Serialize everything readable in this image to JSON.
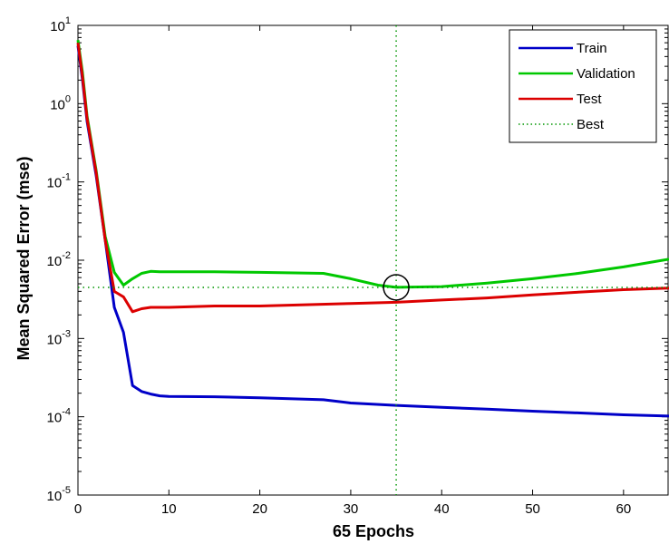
{
  "chart_data": {
    "type": "line",
    "title": "",
    "xlabel": "65 Epochs",
    "ylabel": "Mean Squared Error  (mse)",
    "xlim": [
      0,
      65
    ],
    "ylim": [
      1e-05,
      10
    ],
    "yscale": "log",
    "grid": false,
    "legend_position": "top-right",
    "x_ticks": [
      0,
      10,
      20,
      30,
      40,
      50,
      60
    ],
    "x_tick_labels": [
      "0",
      "10",
      "20",
      "30",
      "40",
      "50",
      "60"
    ],
    "y_ticks": [
      {
        "value": 10,
        "base": "10",
        "exp": "1"
      },
      {
        "value": 1,
        "base": "10",
        "exp": "0"
      },
      {
        "value": 0.1,
        "base": "10",
        "exp": "-1"
      },
      {
        "value": 0.01,
        "base": "10",
        "exp": "-2"
      },
      {
        "value": 0.001,
        "base": "10",
        "exp": "-3"
      },
      {
        "value": 0.0001,
        "base": "10",
        "exp": "-4"
      },
      {
        "value": 1e-05,
        "base": "10",
        "exp": "-5"
      }
    ],
    "series": [
      {
        "name": "Train",
        "color": "#0000c8",
        "points": [
          [
            0,
            5.5
          ],
          [
            0.5,
            2.0
          ],
          [
            1,
            0.6
          ],
          [
            2,
            0.12
          ],
          [
            3,
            0.018
          ],
          [
            4,
            0.0025
          ],
          [
            5,
            0.0012
          ],
          [
            6,
            0.00025
          ],
          [
            7,
            0.00021
          ],
          [
            8,
            0.000195
          ],
          [
            9,
            0.000185
          ],
          [
            10,
            0.000182
          ],
          [
            15,
            0.00018
          ],
          [
            20,
            0.000175
          ],
          [
            27,
            0.000165
          ],
          [
            30,
            0.00015
          ],
          [
            35,
            0.00014
          ],
          [
            40,
            0.000132
          ],
          [
            45,
            0.000125
          ],
          [
            50,
            0.000118
          ],
          [
            55,
            0.000112
          ],
          [
            60,
            0.000106
          ],
          [
            65,
            0.000102
          ]
        ]
      },
      {
        "name": "Validation",
        "color": "#00c800",
        "points": [
          [
            0,
            6.5
          ],
          [
            0.5,
            2.5
          ],
          [
            1,
            0.7
          ],
          [
            2,
            0.14
          ],
          [
            3,
            0.02
          ],
          [
            4,
            0.007
          ],
          [
            5,
            0.0048
          ],
          [
            6,
            0.0058
          ],
          [
            7,
            0.0068
          ],
          [
            8,
            0.0072
          ],
          [
            9,
            0.0071
          ],
          [
            10,
            0.0071
          ],
          [
            15,
            0.0071
          ],
          [
            20,
            0.007
          ],
          [
            27,
            0.0068
          ],
          [
            30,
            0.0058
          ],
          [
            33,
            0.0048
          ],
          [
            35,
            0.0045
          ],
          [
            40,
            0.0046
          ],
          [
            45,
            0.0051
          ],
          [
            50,
            0.0058
          ],
          [
            55,
            0.0068
          ],
          [
            60,
            0.0082
          ],
          [
            65,
            0.0103
          ]
        ]
      },
      {
        "name": "Test",
        "color": "#dc0000",
        "points": [
          [
            0,
            6.0
          ],
          [
            0.5,
            2.2
          ],
          [
            1,
            0.65
          ],
          [
            2,
            0.13
          ],
          [
            3,
            0.018
          ],
          [
            4,
            0.004
          ],
          [
            5,
            0.0034
          ],
          [
            6,
            0.0022
          ],
          [
            7,
            0.0024
          ],
          [
            8,
            0.0025
          ],
          [
            10,
            0.0025
          ],
          [
            15,
            0.0026
          ],
          [
            20,
            0.0026
          ],
          [
            25,
            0.0027
          ],
          [
            30,
            0.0028
          ],
          [
            35,
            0.0029
          ],
          [
            40,
            0.0031
          ],
          [
            45,
            0.0033
          ],
          [
            50,
            0.0036
          ],
          [
            55,
            0.0039
          ],
          [
            60,
            0.0042
          ],
          [
            65,
            0.0044
          ]
        ]
      }
    ],
    "best": {
      "name": "Best",
      "epoch": 35,
      "value": 0.0045,
      "color": "#009600"
    }
  }
}
